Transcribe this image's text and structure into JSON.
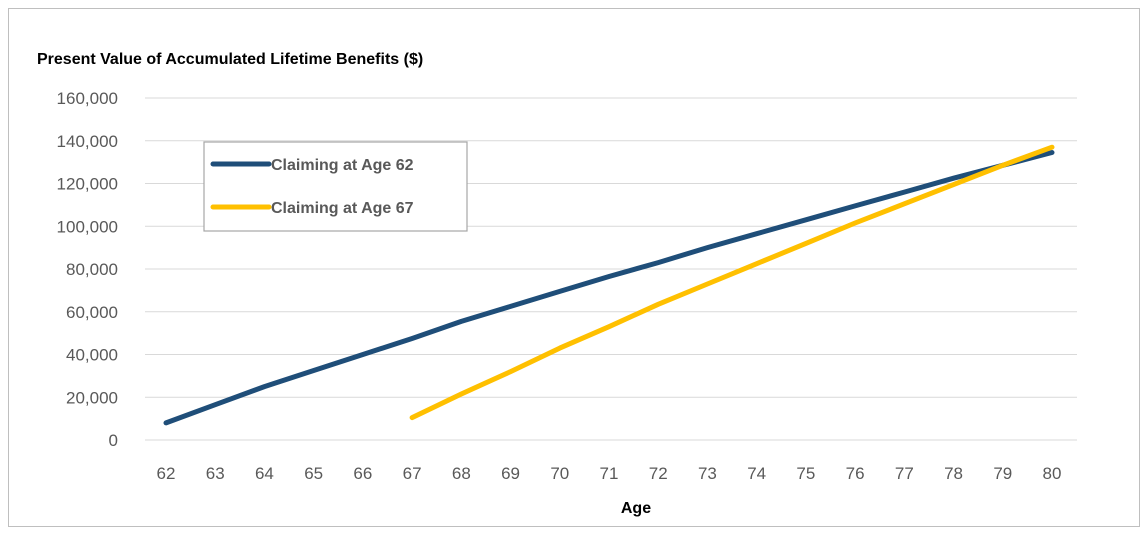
{
  "chart_data": {
    "type": "line",
    "title": "Present Value of Accumulated Lifetime Benefits ($)",
    "xlabel": "Age",
    "ylabel": "",
    "x": [
      62,
      63,
      64,
      65,
      66,
      67,
      68,
      69,
      70,
      71,
      72,
      73,
      74,
      75,
      76,
      77,
      78,
      79,
      80
    ],
    "xlim": [
      62,
      80
    ],
    "ylim": [
      0,
      160000
    ],
    "yticks": [
      0,
      20000,
      40000,
      60000,
      80000,
      100000,
      120000,
      140000,
      160000
    ],
    "ytick_labels": [
      "0",
      "20,000",
      "40,000",
      "60,000",
      "80,000",
      "100,000",
      "120,000",
      "140,000",
      "160,000"
    ],
    "grid": true,
    "legend_position": "top-left",
    "series": [
      {
        "name": "Claiming at Age 62",
        "color": "#1f4e79",
        "x": [
          62,
          63,
          64,
          65,
          66,
          67,
          68,
          69,
          70,
          71,
          72,
          73,
          74,
          75,
          76,
          77,
          78,
          79,
          80
        ],
        "values": [
          8000,
          16500,
          25000,
          32500,
          40000,
          47500,
          55500,
          62500,
          69500,
          76500,
          83000,
          90000,
          96500,
          103000,
          109500,
          116000,
          122500,
          128500,
          134500
        ]
      },
      {
        "name": "Claiming at Age 67",
        "color": "#ffc000",
        "x": [
          67,
          68,
          69,
          70,
          71,
          72,
          73,
          74,
          75,
          76,
          77,
          78,
          79,
          80
        ],
        "values": [
          10500,
          21500,
          32000,
          43000,
          53000,
          63500,
          73000,
          82500,
          92000,
          101500,
          110500,
          119500,
          128500,
          137000
        ]
      }
    ]
  }
}
